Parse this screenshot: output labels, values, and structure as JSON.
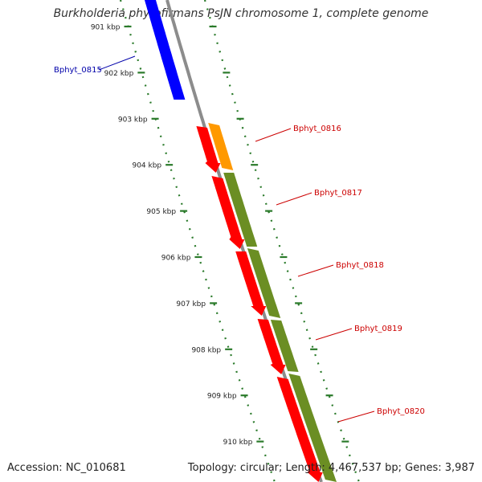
{
  "title": "Burkholderia phytofirmans PsJN chromosome 1, complete genome",
  "accession": "Accession: NC_010681",
  "summary": "Topology: circular; Length: 4,467,537 bp; Genes: 3,987",
  "colors": {
    "backbone": "#8c8c8c",
    "ruler": "#2a7a2a",
    "gene_blue": "#0000ff",
    "gene_red": "#ff0000",
    "gene_orange": "#ff9900",
    "gene_olive": "#6b8e23",
    "label_blue": "#0000aa",
    "label_red": "#cc0000"
  },
  "ticks": [
    {
      "kbp": 901,
      "label": "901 kbp"
    },
    {
      "kbp": 902,
      "label": "902 kbp"
    },
    {
      "kbp": 903,
      "label": "903 kbp"
    },
    {
      "kbp": 904,
      "label": "904 kbp"
    },
    {
      "kbp": 905,
      "label": "905 kbp"
    },
    {
      "kbp": 906,
      "label": "906 kbp"
    },
    {
      "kbp": 907,
      "label": "907 kbp"
    },
    {
      "kbp": 908,
      "label": "908 kbp"
    },
    {
      "kbp": 909,
      "label": "909 kbp"
    },
    {
      "kbp": 910,
      "label": "910 kbp"
    }
  ],
  "genes": [
    {
      "name": "Bphyt_0815",
      "color": "blue"
    },
    {
      "name": "Bphyt_0816",
      "color": "red"
    },
    {
      "name": "Bphyt_0817",
      "color": "red"
    },
    {
      "name": "Bphyt_0818",
      "color": "red"
    },
    {
      "name": "Bphyt_0819",
      "color": "red"
    },
    {
      "name": "Bphyt_0820",
      "color": "red"
    }
  ]
}
